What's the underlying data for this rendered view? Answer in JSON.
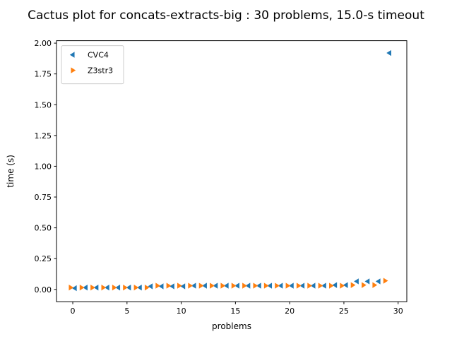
{
  "chart_data": {
    "type": "scatter",
    "title": "Cactus plot for concats-extracts-big : 30 problems, 15.0-s timeout",
    "xlabel": "problems",
    "ylabel": "time (s)",
    "xlim": [
      -1.5,
      30.8
    ],
    "ylim": [
      -0.1,
      2.02
    ],
    "xticks": [
      0,
      5,
      10,
      15,
      20,
      25,
      30
    ],
    "yticks": [
      0.0,
      0.25,
      0.5,
      0.75,
      1.0,
      1.25,
      1.5,
      1.75,
      2.0
    ],
    "xtick_labels": [
      "0",
      "5",
      "10",
      "15",
      "20",
      "25",
      "30"
    ],
    "ytick_labels": [
      "0.00",
      "0.25",
      "0.50",
      "0.75",
      "1.00",
      "1.25",
      "1.50",
      "1.75",
      "2.00"
    ],
    "grid": false,
    "legend_position": "upper-left",
    "series": [
      {
        "name": "CVC4",
        "marker": "triangle-left",
        "color": "#1f77b4",
        "x": [
          0.2,
          1.2,
          2.2,
          3.2,
          4.2,
          5.2,
          6.2,
          7.2,
          8.2,
          9.2,
          10.2,
          11.2,
          12.2,
          13.2,
          14.2,
          15.2,
          16.2,
          17.2,
          18.2,
          19.2,
          20.2,
          21.2,
          22.2,
          23.2,
          24.2,
          25.2,
          26.2,
          27.2,
          28.2,
          29.2
        ],
        "y": [
          0.01,
          0.015,
          0.015,
          0.015,
          0.015,
          0.015,
          0.015,
          0.025,
          0.025,
          0.025,
          0.025,
          0.03,
          0.03,
          0.03,
          0.03,
          0.03,
          0.03,
          0.03,
          0.03,
          0.03,
          0.03,
          0.03,
          0.03,
          0.03,
          0.035,
          0.035,
          0.065,
          0.065,
          0.065,
          1.92
        ]
      },
      {
        "name": "Z3str3",
        "marker": "triangle-right",
        "color": "#ff7f0e",
        "x": [
          -0.2,
          0.8,
          1.8,
          2.8,
          3.8,
          4.8,
          5.8,
          6.8,
          7.8,
          8.8,
          9.8,
          10.8,
          11.8,
          12.8,
          13.8,
          14.8,
          15.8,
          16.8,
          17.8,
          18.8,
          19.8,
          20.8,
          21.8,
          22.8,
          23.8,
          24.8,
          25.8,
          26.8,
          27.8,
          28.8
        ],
        "y": [
          0.015,
          0.015,
          0.015,
          0.015,
          0.015,
          0.015,
          0.015,
          0.015,
          0.03,
          0.03,
          0.03,
          0.03,
          0.03,
          0.03,
          0.03,
          0.03,
          0.03,
          0.03,
          0.03,
          0.03,
          0.03,
          0.03,
          0.03,
          0.03,
          0.03,
          0.03,
          0.035,
          0.035,
          0.035,
          0.07
        ]
      }
    ]
  }
}
